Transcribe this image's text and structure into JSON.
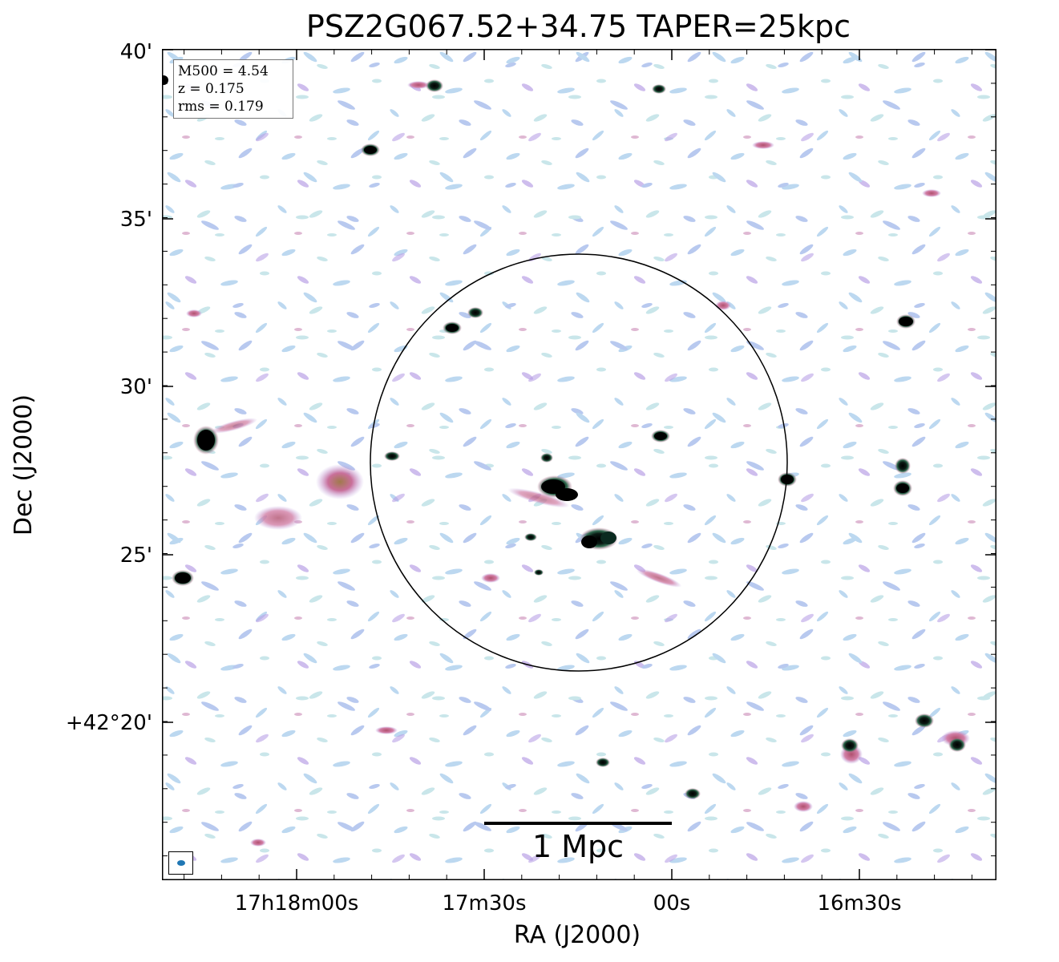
{
  "title": "PSZ2G067.52+34.75 TAPER=25kpc",
  "axes": {
    "xlabel": "RA (J2000)",
    "ylabel": "Dec (J2000)",
    "xticks": [
      "17h18m00s",
      "17m30s",
      "00s",
      "16m30s"
    ],
    "yticks": [
      "40'",
      "35'",
      "30'",
      "25'",
      "+42°20'"
    ]
  },
  "info": {
    "m500": "M500 = 4.54",
    "z": "z = 0.175",
    "rms": "rms = 0.179"
  },
  "scalebar": {
    "label": "1 Mpc"
  },
  "colors": {
    "frame": "#000000",
    "noise_light": "#bcd8f0",
    "noise_purple": "#b9a1e6",
    "emission": "#c96f9a",
    "source_core": "#000000",
    "beam": "#1f77b4"
  }
}
